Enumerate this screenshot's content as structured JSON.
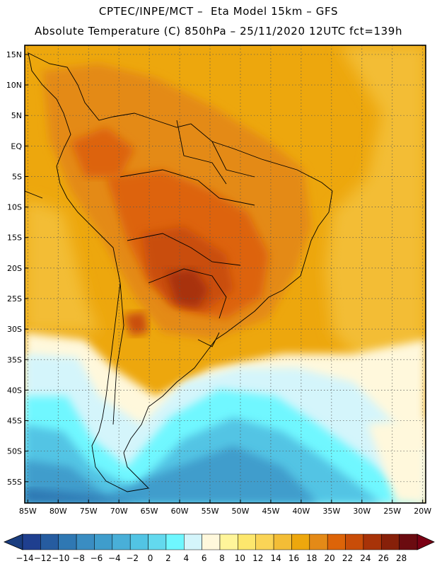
{
  "header": {
    "line1": "CPTEC/INPE/MCT –  Eta Model 15km – GFS",
    "line2": "Absolute Temperature (C) 850hPa – 25/11/2020 12UTC fct=139h"
  },
  "map": {
    "lat_labels": [
      "15N",
      "10N",
      "5N",
      "EQ",
      "5S",
      "10S",
      "15S",
      "20S",
      "25S",
      "30S",
      "35S",
      "40S",
      "45S",
      "50S",
      "55S"
    ],
    "lat_values": [
      15,
      10,
      5,
      0,
      -5,
      -10,
      -15,
      -20,
      -25,
      -30,
      -35,
      -40,
      -45,
      -50,
      -55
    ],
    "lon_labels": [
      "85W",
      "80W",
      "75W",
      "70W",
      "65W",
      "60W",
      "55W",
      "50W",
      "45W",
      "40W",
      "35W",
      "30W",
      "25W",
      "20W"
    ],
    "lon_values": [
      -85,
      -80,
      -75,
      -70,
      -65,
      -60,
      -55,
      -50,
      -45,
      -40,
      -35,
      -30,
      -25,
      -20
    ],
    "extent": {
      "lon_min": -85.5,
      "lon_max": -19.5,
      "lat_min": -58.5,
      "lat_max": 16.5
    }
  },
  "colorbar": {
    "labels": [
      "-14",
      "-12",
      "-10",
      "-8",
      "-6",
      "-4",
      "-2",
      "0",
      "2",
      "4",
      "6",
      "8",
      "10",
      "12",
      "14",
      "16",
      "18",
      "20",
      "22",
      "24",
      "26",
      "28"
    ],
    "colors": [
      "#1f3f8f",
      "#265ca0",
      "#2f78b3",
      "#3a8dc2",
      "#3f9dcc",
      "#49afd8",
      "#52c4e4",
      "#63d9ee",
      "#6ff7ff",
      "#d4f5fb",
      "#fff8dc",
      "#fff59a",
      "#fde76d",
      "#fad456",
      "#f3bd36",
      "#eda70d",
      "#e48a17",
      "#dd6408",
      "#c94d08",
      "#a83308",
      "#872009",
      "#6b0b10"
    ],
    "under_color": "#1a3d7f",
    "over_color": "#7a0014"
  }
}
